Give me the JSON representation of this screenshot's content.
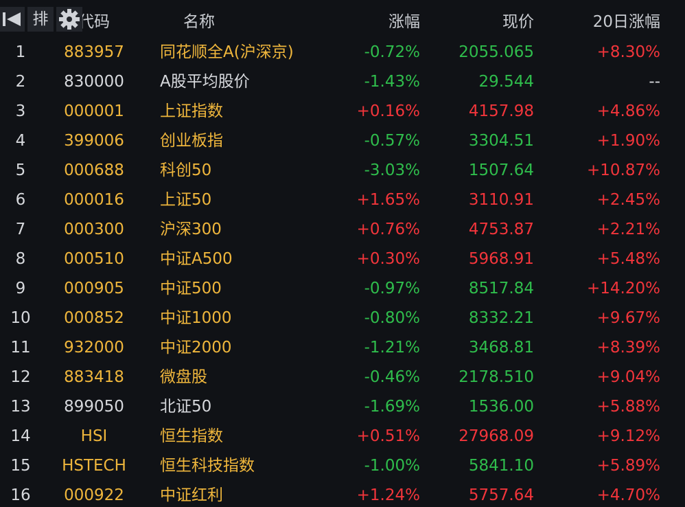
{
  "toolbar": {
    "sort_button": "排"
  },
  "table": {
    "header": {
      "code": "代码",
      "name": "名称",
      "change": "涨幅",
      "price": "现价",
      "change_20d": "20日涨幅"
    },
    "rows": [
      {
        "index": "1",
        "code": "883957",
        "name": "同花顺全A(沪深京)",
        "change": "-0.72%",
        "price": "2055.065",
        "change_20d": "+8.30%",
        "highlight": true
      },
      {
        "index": "2",
        "code": "830000",
        "name": "A股平均股价",
        "change": "-1.43%",
        "price": "29.544",
        "change_20d": "--",
        "highlight": false
      },
      {
        "index": "3",
        "code": "000001",
        "name": "上证指数",
        "change": "+0.16%",
        "price": "4157.98",
        "change_20d": "+4.86%",
        "highlight": true
      },
      {
        "index": "4",
        "code": "399006",
        "name": "创业板指",
        "change": "-0.57%",
        "price": "3304.51",
        "change_20d": "+1.90%",
        "highlight": true
      },
      {
        "index": "5",
        "code": "000688",
        "name": "科创50",
        "change": "-3.03%",
        "price": "1507.64",
        "change_20d": "+10.87%",
        "highlight": true
      },
      {
        "index": "6",
        "code": "000016",
        "name": "上证50",
        "change": "+1.65%",
        "price": "3110.91",
        "change_20d": "+2.45%",
        "highlight": true
      },
      {
        "index": "7",
        "code": "000300",
        "name": "沪深300",
        "change": "+0.76%",
        "price": "4753.87",
        "change_20d": "+2.21%",
        "highlight": true
      },
      {
        "index": "8",
        "code": "000510",
        "name": "中证A500",
        "change": "+0.30%",
        "price": "5968.91",
        "change_20d": "+5.48%",
        "highlight": true
      },
      {
        "index": "9",
        "code": "000905",
        "name": "中证500",
        "change": "-0.97%",
        "price": "8517.84",
        "change_20d": "+14.20%",
        "highlight": true
      },
      {
        "index": "10",
        "code": "000852",
        "name": "中证1000",
        "change": "-0.80%",
        "price": "8332.21",
        "change_20d": "+9.67%",
        "highlight": true
      },
      {
        "index": "11",
        "code": "932000",
        "name": "中证2000",
        "change": "-1.21%",
        "price": "3468.81",
        "change_20d": "+8.39%",
        "highlight": true
      },
      {
        "index": "12",
        "code": "883418",
        "name": "微盘股",
        "change": "-0.46%",
        "price": "2178.510",
        "change_20d": "+9.04%",
        "highlight": true
      },
      {
        "index": "13",
        "code": "899050",
        "name": "北证50",
        "change": "-1.69%",
        "price": "1536.00",
        "change_20d": "+5.88%",
        "highlight": false
      },
      {
        "index": "14",
        "code": "HSI",
        "name": "恒生指数",
        "change": "+0.51%",
        "price": "27968.09",
        "change_20d": "+9.12%",
        "highlight": true
      },
      {
        "index": "15",
        "code": "HSTECH",
        "name": "恒生科技指数",
        "change": "-1.00%",
        "price": "5841.10",
        "change_20d": "+5.89%",
        "highlight": true
      },
      {
        "index": "16",
        "code": "000922",
        "name": "中证红利",
        "change": "+1.24%",
        "price": "5757.64",
        "change_20d": "+4.70%",
        "highlight": true
      }
    ]
  }
}
